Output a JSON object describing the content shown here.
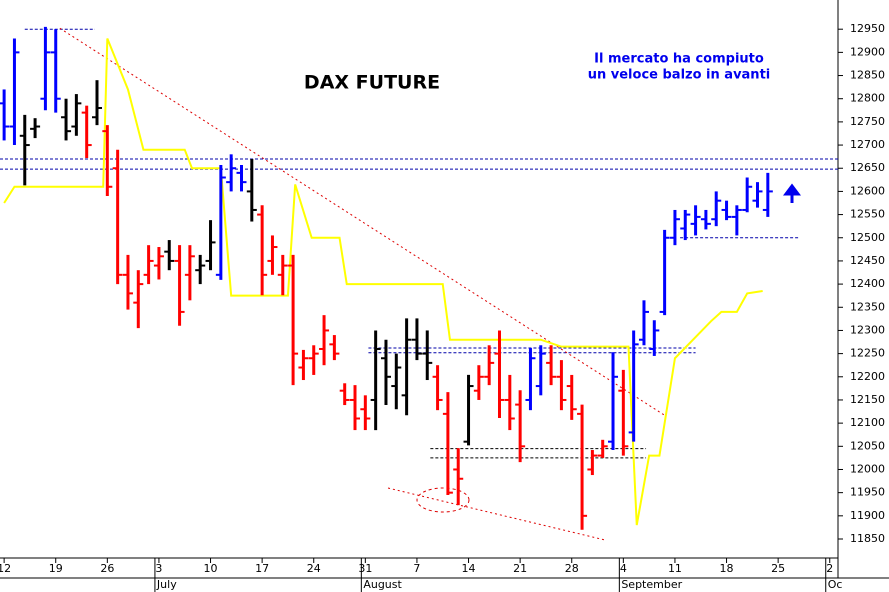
{
  "chart_data": {
    "type": "ohlc",
    "title": "DAX FUTURE",
    "notes": [
      "Il mercato ha compiuto",
      "un veloce balzo in avanti"
    ],
    "x": [
      0,
      1,
      2,
      3,
      4,
      5,
      6,
      7,
      8,
      9,
      10,
      11,
      12,
      13,
      14,
      15,
      16,
      17,
      18,
      19,
      20,
      21,
      22,
      23,
      24,
      25,
      26,
      27,
      28,
      29,
      30,
      31,
      32,
      33,
      34,
      35,
      36,
      37,
      38,
      39,
      40,
      41,
      42,
      43,
      44,
      45,
      46,
      47,
      48,
      49,
      50,
      51,
      52,
      53,
      54,
      55,
      56,
      57,
      58,
      59,
      60,
      61,
      62,
      63,
      64,
      65,
      66,
      67,
      68,
      69,
      70,
      71,
      72,
      73,
      74
    ],
    "open": [
      12790,
      12740,
      12720,
      12735,
      12800,
      12900,
      12760,
      12740,
      12770,
      12760,
      12730,
      12650,
      12420,
      12360,
      12420,
      12440,
      12470,
      12450,
      12420,
      12430,
      12450,
      12420,
      12620,
      12640,
      12600,
      12550,
      12450,
      12420,
      12440,
      12220,
      12240,
      12260,
      12270,
      12170,
      12150,
      12130,
      12150,
      12240,
      12180,
      12160,
      12280,
      12250,
      12200,
      12120,
      12000,
      12060,
      12170,
      12200,
      12250,
      12150,
      12140,
      12150,
      12180,
      12230,
      12200,
      12180,
      12120,
      12000,
      12030,
      12060,
      12170,
      12080,
      12280,
      12260,
      12340,
      12500,
      12520,
      12530,
      12540,
      12540,
      12560,
      12545,
      12560,
      12580,
      12560
    ],
    "high": [
      12820,
      12930,
      12765,
      12758,
      12955,
      12950,
      12800,
      12810,
      12785,
      12840,
      12743,
      12690,
      12463,
      12430,
      12484,
      12480,
      12495,
      12484,
      12484,
      12463,
      12538,
      12657,
      12680,
      12657,
      12670,
      12570,
      12505,
      12463,
      12463,
      12258,
      12268,
      12333,
      12290,
      12186,
      12182,
      12160,
      12300,
      12280,
      12250,
      12326,
      12326,
      12300,
      12225,
      12167,
      12046,
      12204,
      12225,
      12268,
      12300,
      12204,
      12171,
      12262,
      12268,
      12268,
      12236,
      12204,
      12140,
      12042,
      12064,
      12253,
      12215,
      12300,
      12365,
      12322,
      12517,
      12560,
      12560,
      12570,
      12560,
      12600,
      12580,
      12570,
      12630,
      12620,
      12640
    ],
    "low": [
      12710,
      12700,
      12613,
      12715,
      12775,
      12770,
      12710,
      12720,
      12672,
      12743,
      12590,
      12400,
      12345,
      12305,
      12400,
      12410,
      12430,
      12310,
      12365,
      12400,
      12430,
      12409,
      12600,
      12600,
      12535,
      12376,
      12420,
      12376,
      12182,
      12193,
      12204,
      12225,
      12236,
      12139,
      12085,
      12085,
      12085,
      12139,
      12130,
      12117,
      12236,
      12193,
      12128,
      11945,
      11923,
      12052,
      12150,
      12182,
      12111,
      12085,
      12016,
      12128,
      12160,
      12182,
      12128,
      12107,
      11870,
      11988,
      12025,
      12042,
      12030,
      12060,
      12268,
      12245,
      12333,
      12484,
      12495,
      12505,
      12518,
      12525,
      12538,
      12505,
      12555,
      12565,
      12545
    ],
    "close": [
      12740,
      12900,
      12700,
      12740,
      12900,
      12800,
      12730,
      12790,
      12700,
      12780,
      12610,
      12420,
      12380,
      12400,
      12450,
      12460,
      12450,
      12340,
      12460,
      12440,
      12490,
      12630,
      12650,
      12620,
      12560,
      12420,
      12480,
      12440,
      12250,
      12240,
      12250,
      12300,
      12250,
      12150,
      12110,
      12110,
      12260,
      12200,
      12220,
      12280,
      12250,
      12230,
      12150,
      11950,
      11980,
      12180,
      12200,
      12230,
      12150,
      12110,
      12050,
      12240,
      12250,
      12200,
      12150,
      12130,
      11900,
      12030,
      12050,
      12200,
      12050,
      12270,
      12340,
      12300,
      12500,
      12540,
      12550,
      12545,
      12530,
      12580,
      12545,
      12560,
      12610,
      12600,
      12600
    ],
    "colors": [
      "#0000ff",
      "#0000ff",
      "#000000",
      "#000000",
      "#0000ff",
      "#0000ff",
      "#000000",
      "#000000",
      "#ff0000",
      "#000000",
      "#ff0000",
      "#ff0000",
      "#ff0000",
      "#ff0000",
      "#ff0000",
      "#ff0000",
      "#000000",
      "#ff0000",
      "#ff0000",
      "#000000",
      "#000000",
      "#0000ff",
      "#0000ff",
      "#0000ff",
      "#000000",
      "#ff0000",
      "#ff0000",
      "#ff0000",
      "#ff0000",
      "#ff0000",
      "#ff0000",
      "#ff0000",
      "#ff0000",
      "#ff0000",
      "#ff0000",
      "#ff0000",
      "#000000",
      "#000000",
      "#000000",
      "#000000",
      "#000000",
      "#000000",
      "#ff0000",
      "#ff0000",
      "#ff0000",
      "#000000",
      "#ff0000",
      "#ff0000",
      "#ff0000",
      "#ff0000",
      "#ff0000",
      "#0000ff",
      "#0000ff",
      "#ff0000",
      "#ff0000",
      "#ff0000",
      "#ff0000",
      "#ff0000",
      "#ff0000",
      "#0000ff",
      "#ff0000",
      "#0000ff",
      "#0000ff",
      "#0000ff",
      "#0000ff",
      "#0000ff",
      "#0000ff",
      "#0000ff",
      "#0000ff",
      "#0000ff",
      "#0000ff",
      "#0000ff",
      "#0000ff",
      "#0000ff",
      "#0000ff"
    ],
    "line": {
      "color": "#ffff00",
      "x": [
        0,
        1,
        9.6,
        10,
        12,
        13.5,
        17.5,
        18.2,
        21,
        22,
        27.5,
        28.2,
        29.8,
        32.5,
        33.2,
        42.5,
        43.2,
        52,
        54,
        60.5,
        61.3,
        62.5,
        63.5,
        65,
        68.5,
        69.5,
        71,
        72,
        73.5
      ],
      "values": [
        12575,
        12610,
        12610,
        12930,
        12820,
        12690,
        12690,
        12650,
        12650,
        12375,
        12375,
        12615,
        12500,
        12500,
        12400,
        12400,
        12280,
        12280,
        12265,
        12265,
        11880,
        12030,
        12030,
        12240,
        12320,
        12340,
        12340,
        12380,
        12385
      ]
    },
    "hlines": [
      {
        "value": 12950,
        "x": [
          2,
          8.8
        ],
        "color": "#0000aa"
      },
      {
        "value": 12670,
        "x": [
          -0.4,
          80.8
        ],
        "color": "#0000aa"
      },
      {
        "value": 12648,
        "x": [
          -0.4,
          80.8
        ],
        "color": "#0000aa"
      },
      {
        "value": 12500,
        "x": [
          65.5,
          77
        ],
        "color": "#0000aa"
      },
      {
        "value": 12262,
        "x": [
          35.3,
          67
        ],
        "color": "#0000aa"
      },
      {
        "value": 12252,
        "x": [
          35.3,
          67
        ],
        "color": "#0000aa"
      },
      {
        "value": 12045,
        "x": [
          41.3,
          62.2
        ],
        "color": "#000000"
      },
      {
        "value": 12025,
        "x": [
          41.3,
          62.2
        ],
        "color": "#000000"
      }
    ],
    "trendlines": [
      {
        "x": [
          5.4,
          64
        ],
        "values": [
          12952,
          12117
        ],
        "color": "#dd0000"
      },
      {
        "x": [
          37.2,
          58.2
        ],
        "values": [
          11960,
          11848
        ],
        "color": "#dd0000"
      }
    ],
    "xlim": [
      -0.4,
      80.8
    ],
    "xticks": [
      {
        "value": 0,
        "label": "12"
      },
      {
        "value": 5,
        "label": "19"
      },
      {
        "value": 10,
        "label": "26"
      },
      {
        "value": 15,
        "label": "3"
      },
      {
        "value": 20,
        "label": "10"
      },
      {
        "value": 25,
        "label": "17"
      },
      {
        "value": 30,
        "label": "24"
      },
      {
        "value": 35,
        "label": "31"
      },
      {
        "value": 40,
        "label": "7"
      },
      {
        "value": 45,
        "label": "14"
      },
      {
        "value": 50,
        "label": "21"
      },
      {
        "value": 55,
        "label": "28"
      },
      {
        "value": 60,
        "label": "4"
      },
      {
        "value": 65,
        "label": "11"
      },
      {
        "value": 70,
        "label": "18"
      },
      {
        "value": 75,
        "label": "25"
      },
      {
        "value": 80,
        "label": "2"
      }
    ],
    "month_ticks": [
      {
        "value": 15,
        "label": "July"
      },
      {
        "value": 35,
        "label": "August"
      },
      {
        "value": 60,
        "label": "September"
      },
      {
        "value": 80,
        "label": "Oc"
      }
    ],
    "ylim": [
      11809,
      13013
    ],
    "yticks": [
      11850,
      11900,
      11950,
      12000,
      12050,
      12100,
      12150,
      12200,
      12250,
      12300,
      12350,
      12400,
      12450,
      12500,
      12550,
      12600,
      12650,
      12700,
      12750,
      12800,
      12850,
      12900,
      12950
    ]
  }
}
